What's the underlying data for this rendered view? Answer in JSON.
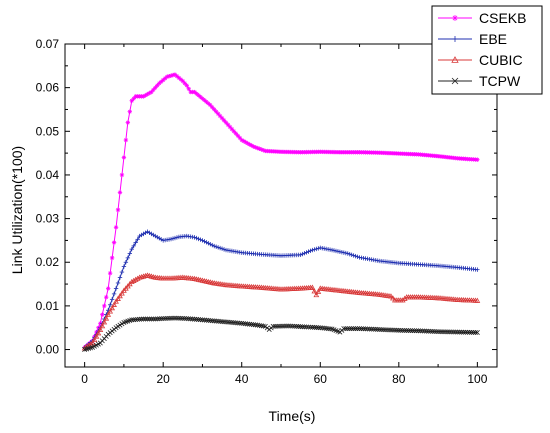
{
  "chart_data": {
    "type": "line",
    "title": "",
    "xlabel": "Time(s)",
    "ylabel": "Link Utilization(*100)",
    "xlim": [
      -5,
      105
    ],
    "ylim": [
      -0.004,
      0.07
    ],
    "x_ticks": [
      "0",
      "20",
      "40",
      "60",
      "80",
      "100"
    ],
    "y_ticks": [
      "0.00",
      "0.01",
      "0.02",
      "0.03",
      "0.04",
      "0.05",
      "0.06",
      "0.07"
    ],
    "legend_position": "top-right",
    "grid": false,
    "series": [
      {
        "name": "CSEKB",
        "color": "#ff00ff",
        "marker": "star",
        "points": [
          [
            0,
            0.0005
          ],
          [
            2,
            0.002
          ],
          [
            4,
            0.006
          ],
          [
            6,
            0.014
          ],
          [
            8,
            0.028
          ],
          [
            10,
            0.044
          ],
          [
            11,
            0.052
          ],
          [
            12,
            0.057
          ],
          [
            13,
            0.058
          ],
          [
            15,
            0.058
          ],
          [
            17,
            0.059
          ],
          [
            19,
            0.061
          ],
          [
            21,
            0.0625
          ],
          [
            23,
            0.063
          ],
          [
            25,
            0.0615
          ],
          [
            26,
            0.0605
          ],
          [
            27,
            0.059
          ],
          [
            28,
            0.059
          ],
          [
            30,
            0.0575
          ],
          [
            32,
            0.056
          ],
          [
            35,
            0.053
          ],
          [
            38,
            0.05
          ],
          [
            40,
            0.048
          ],
          [
            43,
            0.0465
          ],
          [
            46,
            0.0455
          ],
          [
            50,
            0.0453
          ],
          [
            55,
            0.0452
          ],
          [
            60,
            0.0453
          ],
          [
            65,
            0.0452
          ],
          [
            70,
            0.0452
          ],
          [
            75,
            0.0451
          ],
          [
            80,
            0.0449
          ],
          [
            85,
            0.0447
          ],
          [
            90,
            0.0443
          ],
          [
            95,
            0.0438
          ],
          [
            100,
            0.0435
          ]
        ]
      },
      {
        "name": "EBE",
        "color": "#1f2fb0",
        "marker": "plus",
        "points": [
          [
            0,
            0.0005
          ],
          [
            2,
            0.002
          ],
          [
            4,
            0.005
          ],
          [
            6,
            0.009
          ],
          [
            8,
            0.014
          ],
          [
            10,
            0.019
          ],
          [
            12,
            0.023
          ],
          [
            14,
            0.026
          ],
          [
            16,
            0.027
          ],
          [
            18,
            0.026
          ],
          [
            20,
            0.025
          ],
          [
            22,
            0.0253
          ],
          [
            24,
            0.0258
          ],
          [
            26,
            0.026
          ],
          [
            28,
            0.0257
          ],
          [
            30,
            0.025
          ],
          [
            33,
            0.0237
          ],
          [
            36,
            0.0228
          ],
          [
            40,
            0.0222
          ],
          [
            45,
            0.0218
          ],
          [
            50,
            0.0215
          ],
          [
            55,
            0.0217
          ],
          [
            58,
            0.0228
          ],
          [
            60,
            0.0233
          ],
          [
            63,
            0.0228
          ],
          [
            67,
            0.022
          ],
          [
            70,
            0.0211
          ],
          [
            75,
            0.0203
          ],
          [
            80,
            0.0198
          ],
          [
            85,
            0.0195
          ],
          [
            90,
            0.0192
          ],
          [
            95,
            0.0188
          ],
          [
            100,
            0.0183
          ]
        ]
      },
      {
        "name": "CUBIC",
        "color": "#d83a3a",
        "marker": "triangle",
        "points": [
          [
            0,
            0.0003
          ],
          [
            2,
            0.0015
          ],
          [
            4,
            0.0045
          ],
          [
            6,
            0.008
          ],
          [
            8,
            0.011
          ],
          [
            10,
            0.0135
          ],
          [
            12,
            0.0155
          ],
          [
            14,
            0.0165
          ],
          [
            16,
            0.017
          ],
          [
            18,
            0.0165
          ],
          [
            20,
            0.0163
          ],
          [
            22,
            0.0163
          ],
          [
            25,
            0.0165
          ],
          [
            28,
            0.0162
          ],
          [
            30,
            0.0158
          ],
          [
            33,
            0.0152
          ],
          [
            36,
            0.0148
          ],
          [
            40,
            0.0145
          ],
          [
            45,
            0.0142
          ],
          [
            50,
            0.0138
          ],
          [
            55,
            0.014
          ],
          [
            58,
            0.0142
          ],
          [
            59,
            0.0125
          ],
          [
            60,
            0.014
          ],
          [
            62,
            0.0138
          ],
          [
            65,
            0.0135
          ],
          [
            70,
            0.013
          ],
          [
            75,
            0.0126
          ],
          [
            78,
            0.0122
          ],
          [
            79,
            0.0113
          ],
          [
            81,
            0.0113
          ],
          [
            82,
            0.012
          ],
          [
            85,
            0.012
          ],
          [
            90,
            0.0118
          ],
          [
            95,
            0.0114
          ],
          [
            100,
            0.0112
          ]
        ]
      },
      {
        "name": "TCPW",
        "color": "#222222",
        "marker": "x",
        "points": [
          [
            0,
            0.0
          ],
          [
            2,
            0.0005
          ],
          [
            4,
            0.0015
          ],
          [
            6,
            0.0035
          ],
          [
            8,
            0.005
          ],
          [
            10,
            0.0062
          ],
          [
            12,
            0.0068
          ],
          [
            15,
            0.007
          ],
          [
            18,
            0.007
          ],
          [
            20,
            0.0071
          ],
          [
            23,
            0.0072
          ],
          [
            26,
            0.0071
          ],
          [
            30,
            0.0068
          ],
          [
            35,
            0.0064
          ],
          [
            40,
            0.006
          ],
          [
            44,
            0.0056
          ],
          [
            46,
            0.0053
          ],
          [
            47,
            0.0046
          ],
          [
            48,
            0.0053
          ],
          [
            52,
            0.0054
          ],
          [
            56,
            0.0052
          ],
          [
            60,
            0.005
          ],
          [
            63,
            0.0047
          ],
          [
            65,
            0.004
          ],
          [
            66,
            0.0048
          ],
          [
            70,
            0.0048
          ],
          [
            75,
            0.0046
          ],
          [
            80,
            0.0044
          ],
          [
            85,
            0.0043
          ],
          [
            90,
            0.0041
          ],
          [
            95,
            0.004
          ],
          [
            100,
            0.0039
          ]
        ]
      }
    ]
  }
}
